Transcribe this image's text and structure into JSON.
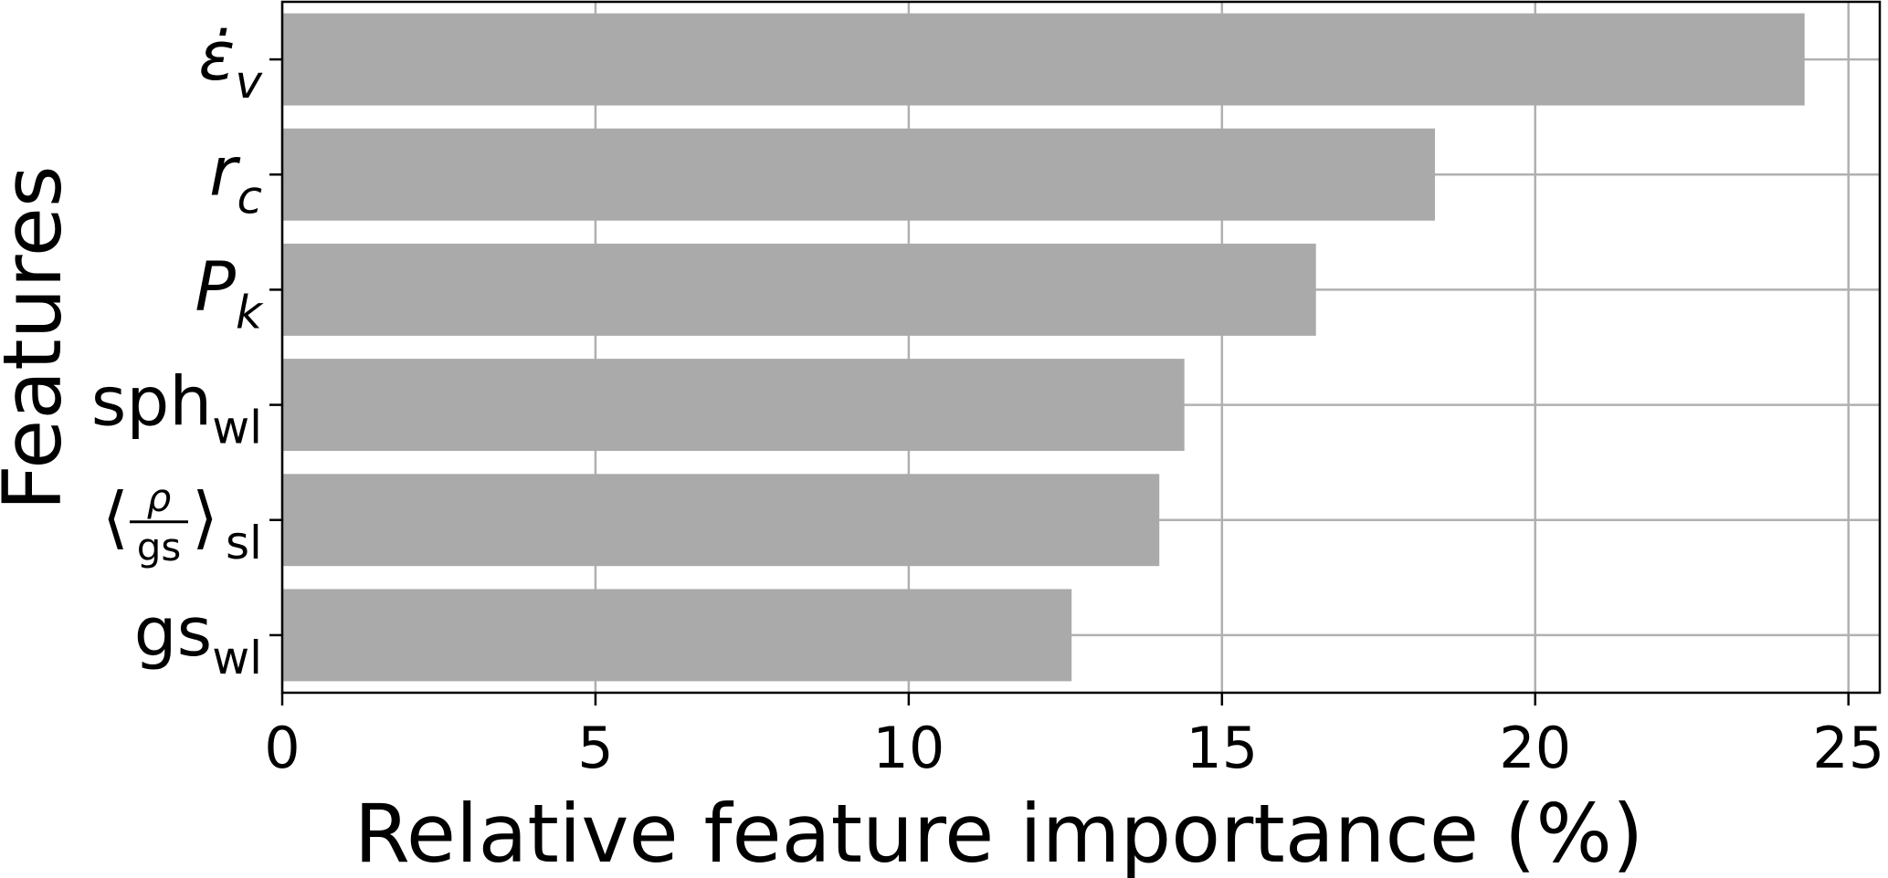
{
  "chart_data": {
    "type": "bar",
    "orientation": "horizontal",
    "categories": [
      {
        "main": "ε̇",
        "sub": "v",
        "italic": true
      },
      {
        "main": "r",
        "sub": "c",
        "italic": true
      },
      {
        "main": "P",
        "sub": "k",
        "italic": true
      },
      {
        "main": "sph",
        "sub": "wl",
        "italic": false
      },
      {
        "main": "⟨ρ/gs⟩",
        "numerator": "ρ",
        "denominator": "gs",
        "sub": "sl",
        "italic": false,
        "fraction": true
      },
      {
        "main": "gs",
        "sub": "wl",
        "italic": false
      }
    ],
    "values": [
      24.3,
      18.4,
      16.5,
      14.4,
      14.0,
      12.6
    ],
    "xlabel": "Relative feature importance (%)",
    "ylabel": "Features",
    "xlim": [
      0,
      25.5
    ],
    "xticks": [
      0,
      5,
      10,
      15,
      20,
      25
    ],
    "grid": true,
    "bar_color": "#aaaaaa",
    "grid_color": "#b0b0b0"
  }
}
